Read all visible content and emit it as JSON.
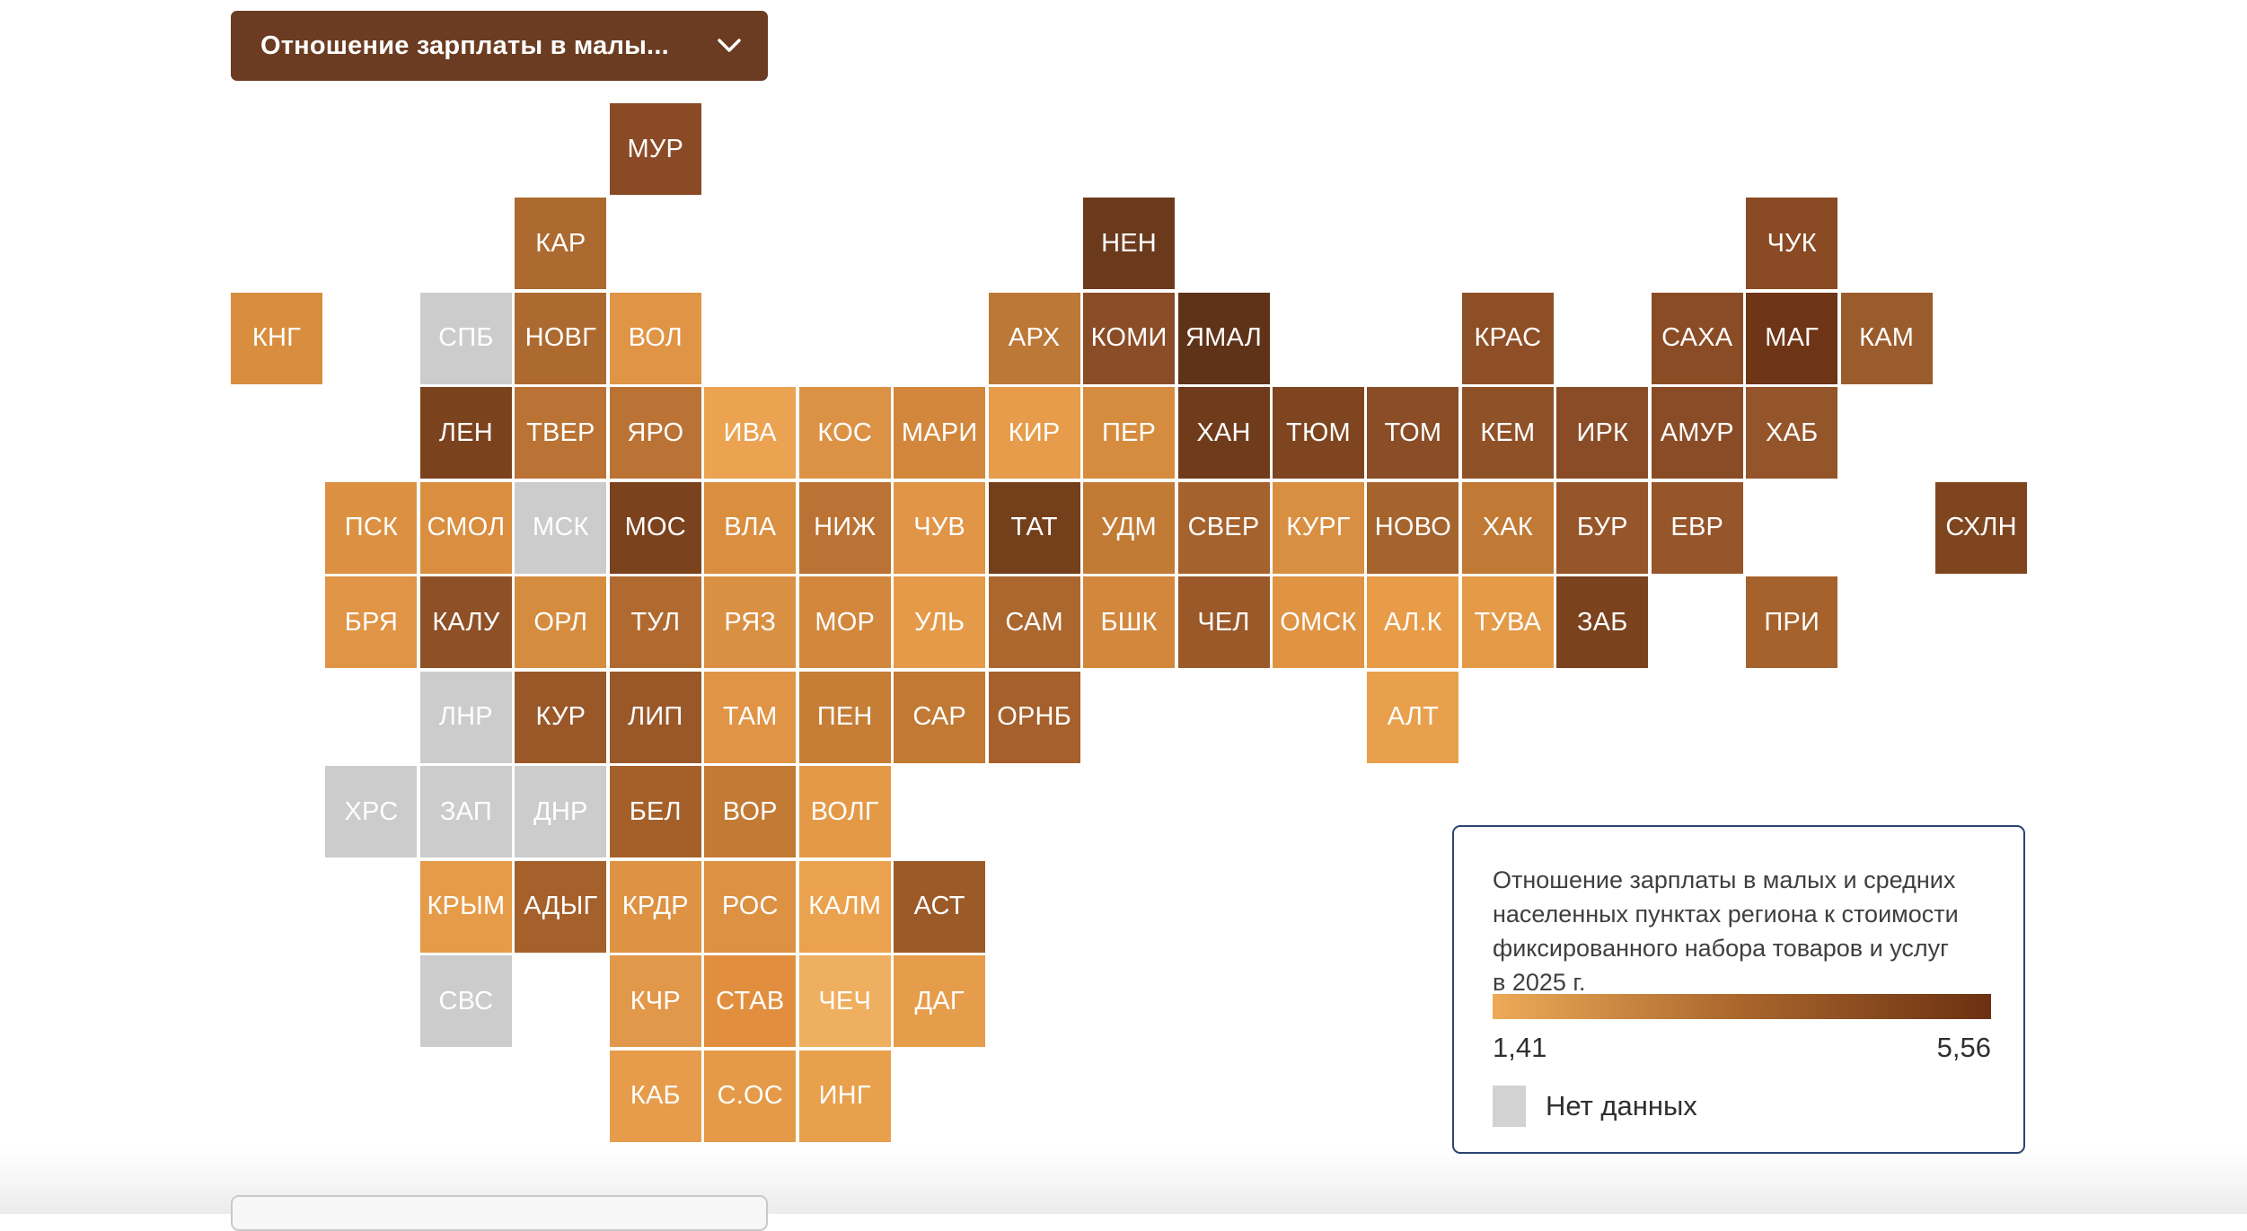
{
  "controls": {
    "metric_dropdown": {
      "label": "Отношение зарплаты в малы...",
      "expanded": false
    }
  },
  "legend": {
    "title": "Отношение зарплаты в малых и средних\nнаселенных пунктах региона к стоимости\nфиксированного набора товаров и услуг\nв 2025 г.",
    "min_label": "1,41",
    "max_label": "5,56",
    "no_data_label": "Нет данных",
    "colors": {
      "gradient_start": "#EDAB58",
      "gradient_mid": "#A9652C",
      "gradient_end": "#6B3111",
      "no_data": "#D2D2D2",
      "panel_border": "#2C4470"
    }
  },
  "map": {
    "value_range": {
      "min": "1,41",
      "max": "5,56"
    },
    "tiles": [
      {
        "code": "МУР",
        "col": 5,
        "row": 1,
        "color": "#8B4A26"
      },
      {
        "code": "КАР",
        "col": 4,
        "row": 2,
        "color": "#AC6A30"
      },
      {
        "code": "НЕН",
        "col": 10,
        "row": 2,
        "color": "#6B3A1D"
      },
      {
        "code": "ЧУК",
        "col": 17,
        "row": 2,
        "color": "#8A4A24"
      },
      {
        "code": "КНГ",
        "col": 1,
        "row": 3,
        "color": "#D88E3E"
      },
      {
        "code": "СПБ",
        "col": 3,
        "row": 3,
        "color": "#CCCCCC",
        "no_data": true
      },
      {
        "code": "НОВГ",
        "col": 4,
        "row": 3,
        "color": "#AC6A30"
      },
      {
        "code": "ВОЛ",
        "col": 5,
        "row": 3,
        "color": "#E09445"
      },
      {
        "code": "АРХ",
        "col": 9,
        "row": 3,
        "color": "#BC7836"
      },
      {
        "code": "КОМИ",
        "col": 10,
        "row": 3,
        "color": "#8A4D27"
      },
      {
        "code": "ЯМАЛ",
        "col": 11,
        "row": 3,
        "color": "#5F3318"
      },
      {
        "code": "КРАС",
        "col": 14,
        "row": 3,
        "color": "#8E4F26"
      },
      {
        "code": "САХА",
        "col": 16,
        "row": 3,
        "color": "#8A4C25"
      },
      {
        "code": "МАГ",
        "col": 17,
        "row": 3,
        "color": "#6E3517"
      },
      {
        "code": "КАМ",
        "col": 18,
        "row": 3,
        "color": "#9A5C2C"
      },
      {
        "code": "ЛЕН",
        "col": 3,
        "row": 4,
        "color": "#7B421E"
      },
      {
        "code": "ТВЕР",
        "col": 4,
        "row": 4,
        "color": "#BA7334"
      },
      {
        "code": "ЯРО",
        "col": 5,
        "row": 4,
        "color": "#BA7334"
      },
      {
        "code": "ИВА",
        "col": 6,
        "row": 4,
        "color": "#EBA351"
      },
      {
        "code": "КОС",
        "col": 7,
        "row": 4,
        "color": "#DC9245"
      },
      {
        "code": "МАРИ",
        "col": 8,
        "row": 4,
        "color": "#D2873C"
      },
      {
        "code": "КИР",
        "col": 9,
        "row": 4,
        "color": "#E69C4A"
      },
      {
        "code": "ПЕР",
        "col": 10,
        "row": 4,
        "color": "#D68C3F"
      },
      {
        "code": "ХАН",
        "col": 11,
        "row": 4,
        "color": "#6F3B1B"
      },
      {
        "code": "ТЮМ",
        "col": 12,
        "row": 4,
        "color": "#7E4520"
      },
      {
        "code": "ТОМ",
        "col": 13,
        "row": 4,
        "color": "#8A4D26"
      },
      {
        "code": "КЕМ",
        "col": 14,
        "row": 4,
        "color": "#8F5128"
      },
      {
        "code": "ИРК",
        "col": 15,
        "row": 4,
        "color": "#8A4C26"
      },
      {
        "code": "АМУР",
        "col": 16,
        "row": 4,
        "color": "#8A4C26"
      },
      {
        "code": "ХАБ",
        "col": 17,
        "row": 4,
        "color": "#95552A"
      },
      {
        "code": "ПСК",
        "col": 2,
        "row": 5,
        "color": "#DC9142"
      },
      {
        "code": "СМОЛ",
        "col": 3,
        "row": 5,
        "color": "#D98E40"
      },
      {
        "code": "МСК",
        "col": 4,
        "row": 5,
        "color": "#CCCCCC",
        "no_data": true
      },
      {
        "code": "МОС",
        "col": 5,
        "row": 5,
        "color": "#7B421E"
      },
      {
        "code": "ВЛА",
        "col": 6,
        "row": 5,
        "color": "#D98E40"
      },
      {
        "code": "НИЖ",
        "col": 7,
        "row": 5,
        "color": "#BA7334"
      },
      {
        "code": "ЧУВ",
        "col": 8,
        "row": 5,
        "color": "#E09547"
      },
      {
        "code": "ТАТ",
        "col": 9,
        "row": 5,
        "color": "#74401C"
      },
      {
        "code": "УДМ",
        "col": 10,
        "row": 5,
        "color": "#C17B35"
      },
      {
        "code": "СВЕР",
        "col": 11,
        "row": 5,
        "color": "#A6622D"
      },
      {
        "code": "КУРГ",
        "col": 12,
        "row": 5,
        "color": "#D98F41"
      },
      {
        "code": "НОВО",
        "col": 13,
        "row": 5,
        "color": "#A5632E"
      },
      {
        "code": "ХАК",
        "col": 14,
        "row": 5,
        "color": "#C07A36"
      },
      {
        "code": "БУР",
        "col": 15,
        "row": 5,
        "color": "#96562A"
      },
      {
        "code": "ЕВР",
        "col": 16,
        "row": 5,
        "color": "#96562A"
      },
      {
        "code": "СХЛН",
        "col": 19,
        "row": 5,
        "color": "#7E451F"
      },
      {
        "code": "БРЯ",
        "col": 2,
        "row": 6,
        "color": "#E09445"
      },
      {
        "code": "КАЛУ",
        "col": 3,
        "row": 6,
        "color": "#8E5026"
      },
      {
        "code": "ОРЛ",
        "col": 4,
        "row": 6,
        "color": "#D68C3E"
      },
      {
        "code": "ТУЛ",
        "col": 5,
        "row": 6,
        "color": "#B06A2F"
      },
      {
        "code": "РЯЗ",
        "col": 6,
        "row": 6,
        "color": "#DA9043"
      },
      {
        "code": "МОР",
        "col": 7,
        "row": 6,
        "color": "#D2873C"
      },
      {
        "code": "УЛЬ",
        "col": 8,
        "row": 6,
        "color": "#E49A49"
      },
      {
        "code": "САМ",
        "col": 9,
        "row": 6,
        "color": "#AC672E"
      },
      {
        "code": "БШК",
        "col": 10,
        "row": 6,
        "color": "#D2873C"
      },
      {
        "code": "ЧЕЛ",
        "col": 11,
        "row": 6,
        "color": "#9B5929"
      },
      {
        "code": "ОМСК",
        "col": 12,
        "row": 6,
        "color": "#DF9343"
      },
      {
        "code": "АЛ.К",
        "col": 13,
        "row": 6,
        "color": "#E89C48"
      },
      {
        "code": "ТУВА",
        "col": 14,
        "row": 6,
        "color": "#E59A47"
      },
      {
        "code": "ЗАБ",
        "col": 15,
        "row": 6,
        "color": "#7B421E"
      },
      {
        "code": "ПРИ",
        "col": 17,
        "row": 6,
        "color": "#A5622C"
      },
      {
        "code": "ЛНР",
        "col": 3,
        "row": 7,
        "color": "#CCCCCC",
        "no_data": true
      },
      {
        "code": "КУР",
        "col": 4,
        "row": 7,
        "color": "#9A5829"
      },
      {
        "code": "ЛИП",
        "col": 5,
        "row": 7,
        "color": "#9A5829"
      },
      {
        "code": "ТАМ",
        "col": 6,
        "row": 7,
        "color": "#E09445"
      },
      {
        "code": "ПЕН",
        "col": 7,
        "row": 7,
        "color": "#C67E37"
      },
      {
        "code": "САР",
        "col": 8,
        "row": 7,
        "color": "#C17934"
      },
      {
        "code": "ОРНБ",
        "col": 9,
        "row": 7,
        "color": "#A5602B"
      },
      {
        "code": "АЛТ",
        "col": 13,
        "row": 7,
        "color": "#E9A04C"
      },
      {
        "code": "ХРС",
        "col": 2,
        "row": 8,
        "color": "#CCCCCC",
        "no_data": true
      },
      {
        "code": "ЗАП",
        "col": 3,
        "row": 8,
        "color": "#CCCCCC",
        "no_data": true
      },
      {
        "code": "ДНР",
        "col": 4,
        "row": 8,
        "color": "#CCCCCC",
        "no_data": true
      },
      {
        "code": "БЕЛ",
        "col": 5,
        "row": 8,
        "color": "#A5602A"
      },
      {
        "code": "ВОР",
        "col": 6,
        "row": 8,
        "color": "#C27A35"
      },
      {
        "code": "ВОЛГ",
        "col": 7,
        "row": 8,
        "color": "#E49947"
      },
      {
        "code": "КРЫМ",
        "col": 3,
        "row": 9,
        "color": "#E59B48"
      },
      {
        "code": "АДЫГ",
        "col": 4,
        "row": 9,
        "color": "#A5602B"
      },
      {
        "code": "КРДР",
        "col": 5,
        "row": 9,
        "color": "#DE9243"
      },
      {
        "code": "РОС",
        "col": 6,
        "row": 9,
        "color": "#DD9142"
      },
      {
        "code": "КАЛМ",
        "col": 7,
        "row": 9,
        "color": "#EBA24E"
      },
      {
        "code": "АСТ",
        "col": 8,
        "row": 9,
        "color": "#9C5A28"
      },
      {
        "code": "СВС",
        "col": 3,
        "row": 10,
        "color": "#CCCCCC",
        "no_data": true
      },
      {
        "code": "КЧР",
        "col": 5,
        "row": 10,
        "color": "#E2984A"
      },
      {
        "code": "СТАВ",
        "col": 6,
        "row": 10,
        "color": "#E18F3F"
      },
      {
        "code": "ЧЕЧ",
        "col": 7,
        "row": 10,
        "color": "#EFAF60"
      },
      {
        "code": "ДАГ",
        "col": 8,
        "row": 10,
        "color": "#E69D4B"
      },
      {
        "code": "КАБ",
        "col": 5,
        "row": 11,
        "color": "#E69C4A"
      },
      {
        "code": "С.ОС",
        "col": 6,
        "row": 11,
        "color": "#E49A48"
      },
      {
        "code": "ИНГ",
        "col": 7,
        "row": 11,
        "color": "#E8A04D"
      }
    ]
  }
}
